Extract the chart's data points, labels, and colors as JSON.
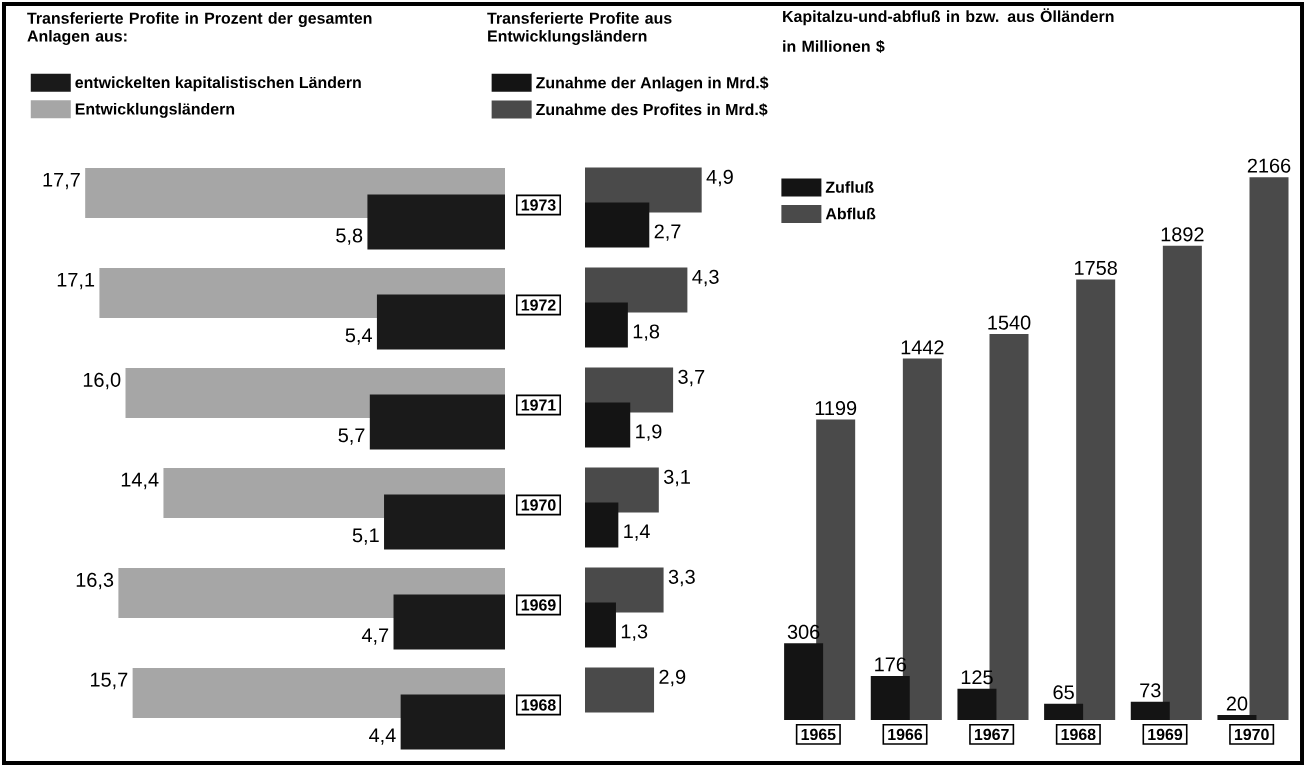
{
  "chart_data": [
    {
      "type": "bar",
      "orientation": "horizontal",
      "title": "Transferierte Profite in Prozent der gesamten Anlagen aus:",
      "categories": [
        "1973",
        "1972",
        "1971",
        "1970",
        "1969",
        "1968"
      ],
      "tick_labels": false,
      "legend": "top",
      "series": [
        {
          "name": "entwickelten kapitalistischen Ländern",
          "color": "#1a1a1a",
          "values": [
            5.8,
            5.4,
            5.7,
            5.1,
            4.7,
            4.4
          ],
          "value_labels": [
            "5,8",
            "5,4",
            "5,7",
            "5,1",
            "4,7",
            "4,4"
          ]
        },
        {
          "name": "Entwicklungsländern",
          "color": "#a6a6a6",
          "values": [
            17.7,
            17.1,
            16.0,
            14.4,
            16.3,
            15.7
          ],
          "value_labels": [
            "17,7",
            "17,1",
            "16,0",
            "14,4",
            "16,3",
            "15,7"
          ]
        }
      ]
    },
    {
      "type": "bar",
      "orientation": "horizontal",
      "title": "Transferierte Profite aus Entwicklungsländern",
      "categories": [
        "1973",
        "1972",
        "1971",
        "1970",
        "1969",
        "1968"
      ],
      "legend": "top",
      "series": [
        {
          "name": "Zunahme der Anlagen in Mrd.$",
          "color": "#141414",
          "values": [
            2.7,
            1.8,
            1.9,
            1.4,
            1.3,
            null
          ],
          "value_labels": [
            "2,7",
            "1,8",
            "1,9",
            "1,4",
            "1,3",
            null
          ]
        },
        {
          "name": "Zunahme des Profites in Mrd.$",
          "color": "#4a4a4a",
          "values": [
            4.9,
            4.3,
            3.7,
            3.1,
            3.3,
            2.9
          ],
          "value_labels": [
            "4,9",
            "4,3",
            "3,7",
            "3,1",
            "3,3",
            "2,9"
          ]
        }
      ]
    },
    {
      "type": "bar",
      "title": "Kapitalzu-und-abfluß in bzw. aus Ölländern",
      "subtitle": "in Millionen $",
      "categories": [
        "1965",
        "1966",
        "1967",
        "1968",
        "1969",
        "1970"
      ],
      "tick_labels": "x",
      "legend": "top left",
      "data_labels": true,
      "series": [
        {
          "name": "Zufluß",
          "color": "#141414",
          "values": [
            306,
            176,
            125,
            65,
            73,
            20
          ]
        },
        {
          "name": "Abfluß",
          "color": "#4a4a4a",
          "values": [
            1199,
            1442,
            1540,
            1758,
            1892,
            2166
          ]
        }
      ]
    }
  ]
}
